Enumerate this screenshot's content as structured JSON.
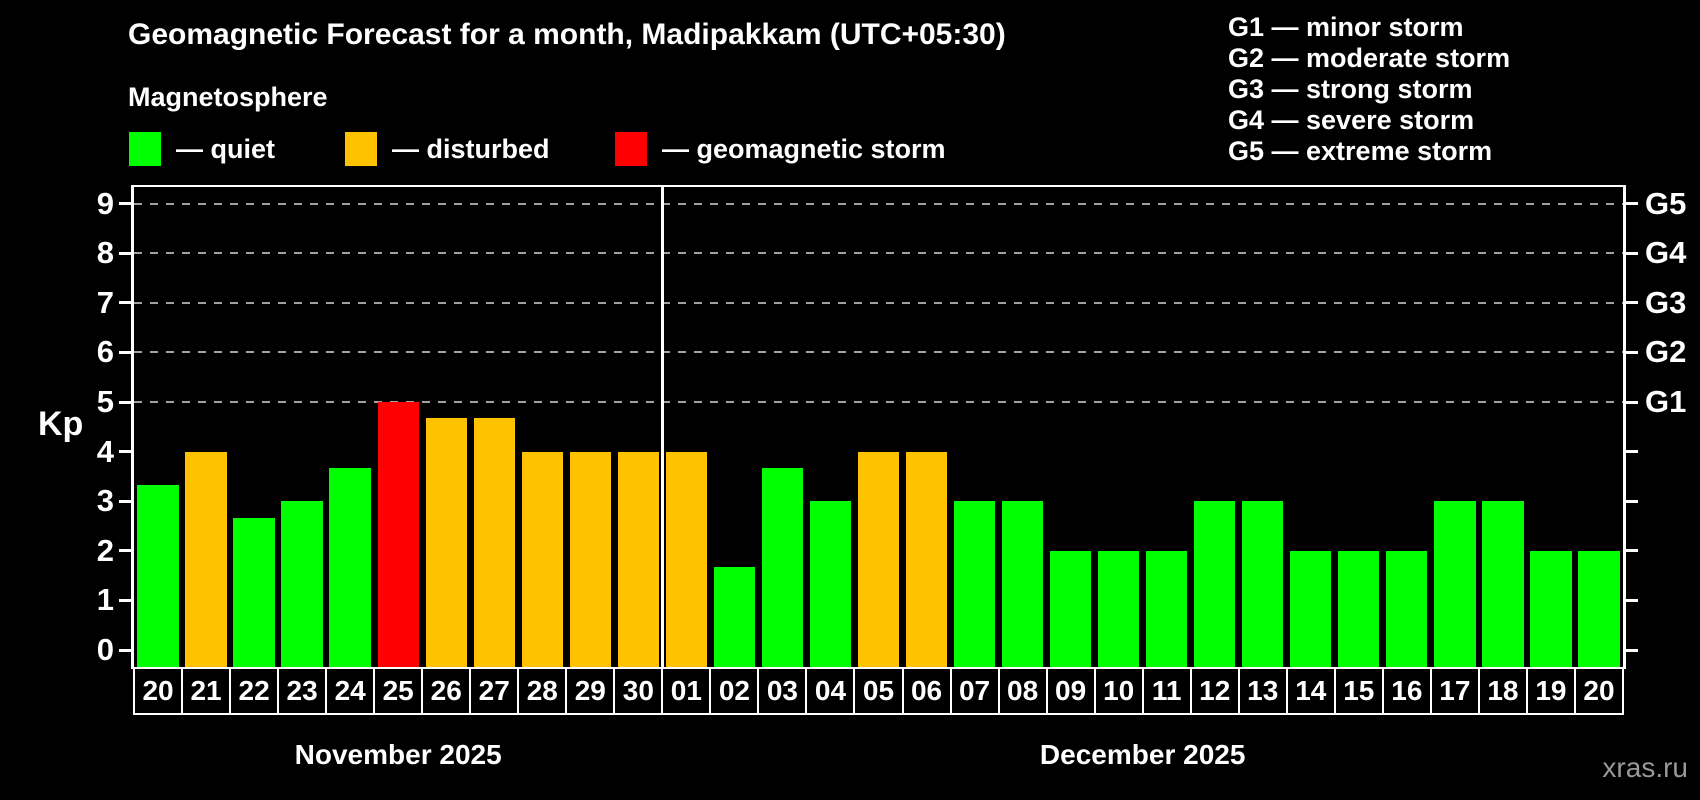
{
  "title": "Geomagnetic Forecast for a month, Madipakkam (UTC+05:30)",
  "subtitle": "Magnetosphere",
  "legend": {
    "quiet": {
      "label": "— quiet",
      "color": "#00ff00"
    },
    "disturbed": {
      "label": "— disturbed",
      "color": "#ffc200"
    },
    "storm": {
      "label": "— geomagnetic storm",
      "color": "#ff0000"
    }
  },
  "g_legend": [
    "G1 — minor storm",
    "G2 — moderate storm",
    "G3 — strong storm",
    "G4 — severe storm",
    "G5 — extreme storm"
  ],
  "watermark": "xras.ru",
  "colors": {
    "background": "#000000",
    "axis": "#ffffff",
    "grid": "#a0a0a0",
    "text": "#ffffff",
    "watermark": "#999999"
  },
  "chart_data": {
    "type": "bar",
    "ylabel": "Kp",
    "ylim": [
      0,
      9
    ],
    "yticks": [
      0,
      1,
      2,
      3,
      4,
      5,
      6,
      7,
      8,
      9
    ],
    "grid_kp": [
      5,
      6,
      7,
      8,
      9
    ],
    "grid_style": "dashed",
    "right_axis": [
      {
        "kp": 5,
        "label": "G1"
      },
      {
        "kp": 6,
        "label": "G2"
      },
      {
        "kp": 7,
        "label": "G3"
      },
      {
        "kp": 8,
        "label": "G4"
      },
      {
        "kp": 9,
        "label": "G5"
      }
    ],
    "months": [
      {
        "label": "November 2025",
        "days": [
          "20",
          "21",
          "22",
          "23",
          "24",
          "25",
          "26",
          "27",
          "28",
          "29",
          "30"
        ]
      },
      {
        "label": "December 2025",
        "days": [
          "01",
          "02",
          "03",
          "04",
          "05",
          "06",
          "07",
          "08",
          "09",
          "10",
          "11",
          "12",
          "13",
          "14",
          "15",
          "16",
          "17",
          "18",
          "19",
          "20"
        ]
      }
    ],
    "values": [
      3.33,
      4,
      2.67,
      3,
      3.67,
      5,
      4.67,
      4.67,
      4,
      4,
      4,
      4,
      1.67,
      3.67,
      3,
      4,
      4,
      3,
      3,
      2,
      2,
      2,
      3,
      3,
      2,
      2,
      2,
      3,
      3,
      2,
      2
    ],
    "statuses": [
      "quiet",
      "disturbed",
      "quiet",
      "quiet",
      "quiet",
      "storm",
      "disturbed",
      "disturbed",
      "disturbed",
      "disturbed",
      "disturbed",
      "disturbed",
      "quiet",
      "quiet",
      "quiet",
      "disturbed",
      "disturbed",
      "quiet",
      "quiet",
      "quiet",
      "quiet",
      "quiet",
      "quiet",
      "quiet",
      "quiet",
      "quiet",
      "quiet",
      "quiet",
      "quiet",
      "quiet",
      "quiet"
    ]
  }
}
